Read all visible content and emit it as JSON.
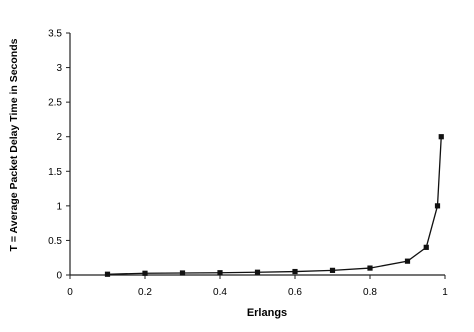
{
  "chart_data": {
    "type": "line",
    "xlabel": "Erlangs",
    "ylabel": "T = Average Packet Delay Time in Seconds",
    "xlim": [
      0,
      1
    ],
    "ylim": [
      0,
      3.5
    ],
    "xticks": [
      "0",
      "0.2",
      "0.4",
      "0.6",
      "0.8",
      "1"
    ],
    "yticks": [
      "0",
      "0.5",
      "1",
      "1.5",
      "2",
      "2.5",
      "3",
      "3.5"
    ],
    "grid": false,
    "legend": "none",
    "series": [
      {
        "marker": "square",
        "x": [
          0.1,
          0.2,
          0.3,
          0.4,
          0.5,
          0.6,
          0.7,
          0.8,
          0.9,
          0.95,
          0.98,
          0.99
        ],
        "y": [
          0.011,
          0.025,
          0.029,
          0.033,
          0.04,
          0.05,
          0.067,
          0.1,
          0.2,
          0.4,
          1.0,
          2.0
        ]
      }
    ],
    "colors": {
      "line": "#111111",
      "axis": "#222222"
    }
  }
}
